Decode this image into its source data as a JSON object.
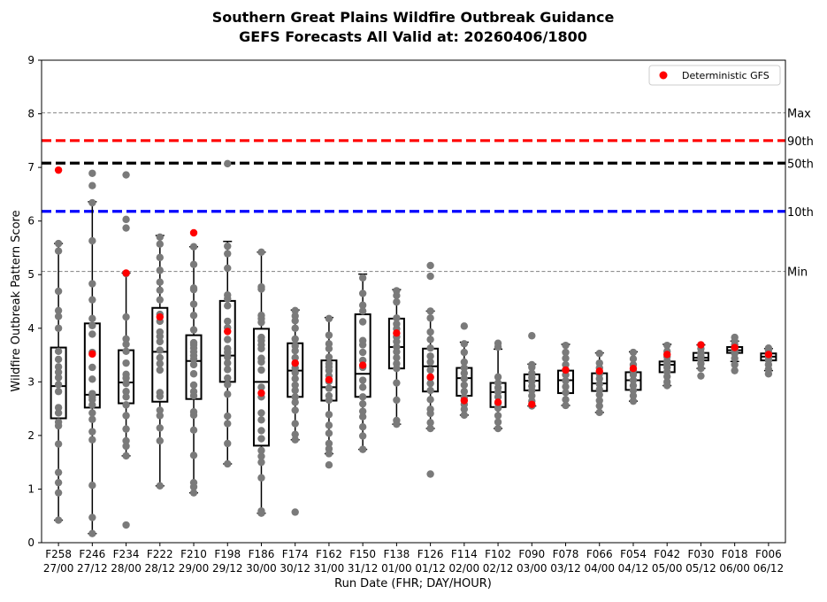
{
  "chart_data": {
    "type": "box",
    "title": "Southern Great Plains Wildfire Outbreak Guidance",
    "subtitle": "GEFS Forecasts All Valid at: 20260406/1800",
    "xlabel": "Run Date (FHR; DAY/HOUR)",
    "ylabel": "Wildfire Outbreak Pattern Score",
    "ylim": [
      0,
      9
    ],
    "yticks": [
      "0",
      "1",
      "2",
      "3",
      "4",
      "5",
      "6",
      "7",
      "8",
      "9"
    ],
    "legend": {
      "label": "Deterministic GFS",
      "position": "top-right",
      "color": "#ff0000"
    },
    "reference_lines": [
      {
        "label": "Max",
        "value": 8.02,
        "color": "#808080",
        "style": "dashed-thin"
      },
      {
        "label": "90th",
        "value": 7.5,
        "color": "#ff0000",
        "style": "dashed-thick"
      },
      {
        "label": "50th",
        "value": 7.08,
        "color": "#000000",
        "style": "dashed-thick"
      },
      {
        "label": "10th",
        "value": 6.18,
        "color": "#0000ff",
        "style": "dashed-thick"
      },
      {
        "label": "Min",
        "value": 5.06,
        "color": "#808080",
        "style": "dashed-thin"
      }
    ],
    "categories": [
      {
        "fhr": "F258",
        "date": "27/00",
        "q1": 2.32,
        "median": 2.92,
        "q3": 3.64,
        "lo": 0.42,
        "hi": 5.58,
        "det": 6.95,
        "members": [
          0.42,
          0.93,
          1.12,
          1.31,
          1.84,
          2.18,
          2.25,
          2.42,
          2.52,
          2.82,
          2.95,
          3.08,
          3.18,
          3.28,
          3.42,
          3.57,
          4.0,
          4.22,
          4.33,
          4.69,
          5.44,
          5.58
        ]
      },
      {
        "fhr": "F246",
        "date": "27/12",
        "q1": 2.52,
        "median": 2.76,
        "q3": 4.09,
        "lo": 0.17,
        "hi": 6.36,
        "det": 3.52,
        "members": [
          0.17,
          0.47,
          1.07,
          1.92,
          2.07,
          2.3,
          2.42,
          2.57,
          2.67,
          2.72,
          2.78,
          3.05,
          3.27,
          3.55,
          3.89,
          4.05,
          4.18,
          4.53,
          4.83,
          5.63,
          6.34,
          6.66,
          6.89
        ]
      },
      {
        "fhr": "F234",
        "date": "28/00",
        "q1": 2.6,
        "median": 2.99,
        "q3": 3.59,
        "lo": 1.62,
        "hi": 5.03,
        "det": 5.03,
        "members": [
          0.33,
          1.62,
          1.8,
          1.9,
          2.12,
          2.37,
          2.57,
          2.72,
          2.82,
          2.97,
          3.07,
          3.14,
          3.35,
          3.57,
          3.7,
          3.8,
          4.21,
          5.02,
          5.87,
          6.03,
          6.86
        ]
      },
      {
        "fhr": "F222",
        "date": "28/12",
        "q1": 2.63,
        "median": 3.56,
        "q3": 4.38,
        "lo": 1.06,
        "hi": 5.73,
        "det": 4.21,
        "members": [
          1.06,
          1.9,
          2.14,
          2.37,
          2.47,
          2.73,
          2.8,
          3.22,
          3.34,
          3.45,
          3.59,
          3.75,
          3.85,
          3.93,
          4.13,
          4.26,
          4.53,
          4.71,
          4.86,
          5.08,
          5.32,
          5.57,
          5.7
        ]
      },
      {
        "fhr": "F210",
        "date": "29/00",
        "q1": 2.68,
        "median": 3.39,
        "q3": 3.87,
        "lo": 0.93,
        "hi": 5.52,
        "det": 5.78,
        "members": [
          0.93,
          1.04,
          1.12,
          1.63,
          2.1,
          2.38,
          2.44,
          2.74,
          2.82,
          2.94,
          3.15,
          3.32,
          3.43,
          3.49,
          3.56,
          3.63,
          3.69,
          3.73,
          3.97,
          4.24,
          4.45,
          4.72,
          4.75,
          5.19,
          5.52
        ]
      },
      {
        "fhr": "F198",
        "date": "29/12",
        "q1": 3.0,
        "median": 3.49,
        "q3": 4.51,
        "lo": 1.47,
        "hi": 5.62,
        "det": 3.94,
        "members": [
          1.47,
          1.85,
          2.22,
          2.36,
          2.77,
          2.95,
          3.07,
          3.23,
          3.35,
          3.46,
          3.55,
          3.62,
          3.79,
          4.01,
          4.13,
          4.42,
          4.55,
          4.62,
          5.12,
          5.39,
          5.53,
          7.07
        ]
      },
      {
        "fhr": "F186",
        "date": "30/00",
        "q1": 1.81,
        "median": 3.0,
        "q3": 3.99,
        "lo": 0.55,
        "hi": 5.42,
        "det": 2.79,
        "members": [
          0.55,
          0.59,
          1.21,
          1.5,
          1.61,
          1.72,
          1.94,
          2.09,
          2.29,
          2.42,
          2.72,
          2.9,
          3.22,
          3.37,
          3.44,
          3.62,
          3.69,
          3.77,
          3.83,
          4.11,
          4.18,
          4.24,
          4.73,
          4.77,
          5.42
        ]
      },
      {
        "fhr": "F174",
        "date": "30/12",
        "q1": 2.72,
        "median": 3.21,
        "q3": 3.72,
        "lo": 1.92,
        "hi": 4.34,
        "det": 3.35,
        "members": [
          0.57,
          1.92,
          2.02,
          2.22,
          2.47,
          2.62,
          2.72,
          2.84,
          2.94,
          3.06,
          3.17,
          3.26,
          3.34,
          3.45,
          3.58,
          3.67,
          3.8,
          4.0,
          4.14,
          4.23,
          4.33
        ]
      },
      {
        "fhr": "F162",
        "date": "31/00",
        "q1": 2.65,
        "median": 2.9,
        "q3": 3.4,
        "lo": 1.66,
        "hi": 4.2,
        "det": 3.04,
        "members": [
          1.45,
          1.66,
          1.75,
          1.85,
          2.04,
          2.19,
          2.39,
          2.66,
          2.74,
          2.88,
          3.01,
          3.11,
          3.21,
          3.28,
          3.34,
          3.46,
          3.62,
          3.71,
          3.87,
          4.18
        ]
      },
      {
        "fhr": "F150",
        "date": "31/12",
        "q1": 2.72,
        "median": 3.15,
        "q3": 4.26,
        "lo": 1.74,
        "hi": 5.01,
        "det": 3.31,
        "members": [
          1.74,
          1.99,
          2.16,
          2.35,
          2.45,
          2.59,
          2.72,
          2.9,
          3.03,
          3.27,
          3.4,
          3.55,
          3.69,
          3.77,
          4.12,
          4.32,
          4.43,
          4.65,
          4.94
        ]
      },
      {
        "fhr": "F138",
        "date": "01/00",
        "q1": 3.25,
        "median": 3.65,
        "q3": 4.18,
        "lo": 2.21,
        "hi": 4.72,
        "det": 3.91,
        "members": [
          2.21,
          2.28,
          2.66,
          2.98,
          3.25,
          3.34,
          3.45,
          3.56,
          3.65,
          3.75,
          3.84,
          3.99,
          4.08,
          4.19,
          4.49,
          4.61,
          4.7
        ]
      },
      {
        "fhr": "F126",
        "date": "01/12",
        "q1": 2.82,
        "median": 3.29,
        "q3": 3.62,
        "lo": 2.13,
        "hi": 4.32,
        "det": 3.09,
        "members": [
          1.28,
          2.13,
          2.24,
          2.41,
          2.49,
          2.67,
          2.84,
          2.97,
          3.08,
          3.22,
          3.37,
          3.48,
          3.63,
          3.79,
          3.93,
          4.19,
          4.32,
          4.97,
          5.17
        ]
      },
      {
        "fhr": "F114",
        "date": "02/00",
        "q1": 2.74,
        "median": 3.07,
        "q3": 3.26,
        "lo": 2.38,
        "hi": 3.74,
        "det": 2.65,
        "members": [
          2.38,
          2.49,
          2.58,
          2.71,
          2.82,
          2.94,
          3.06,
          3.16,
          3.26,
          3.37,
          3.55,
          3.71,
          4.04
        ]
      },
      {
        "fhr": "F102",
        "date": "02/12",
        "q1": 2.53,
        "median": 2.81,
        "q3": 2.98,
        "lo": 2.13,
        "hi": 3.61,
        "det": 2.62,
        "members": [
          2.13,
          2.25,
          2.37,
          2.51,
          2.6,
          2.72,
          2.81,
          2.89,
          2.98,
          3.09,
          3.65,
          3.72
        ]
      },
      {
        "fhr": "F090",
        "date": "03/00",
        "q1": 2.84,
        "median": 3.02,
        "q3": 3.14,
        "lo": 2.55,
        "hi": 3.33,
        "det": 2.58,
        "members": [
          2.55,
          2.64,
          2.74,
          2.84,
          2.92,
          3.01,
          3.08,
          3.16,
          3.27,
          3.32,
          3.86
        ]
      },
      {
        "fhr": "F078",
        "date": "03/12",
        "q1": 2.79,
        "median": 3.03,
        "q3": 3.21,
        "lo": 2.56,
        "hi": 3.7,
        "det": 3.22,
        "members": [
          2.56,
          2.67,
          2.8,
          2.91,
          3.02,
          3.13,
          3.22,
          3.32,
          3.44,
          3.55,
          3.68
        ]
      },
      {
        "fhr": "F066",
        "date": "04/00",
        "q1": 2.83,
        "median": 2.97,
        "q3": 3.16,
        "lo": 2.43,
        "hi": 3.54,
        "det": 3.2,
        "members": [
          2.43,
          2.55,
          2.65,
          2.76,
          2.86,
          2.96,
          3.06,
          3.15,
          3.26,
          3.35,
          3.53
        ]
      },
      {
        "fhr": "F054",
        "date": "04/12",
        "q1": 2.85,
        "median": 3.03,
        "q3": 3.18,
        "lo": 2.64,
        "hi": 3.56,
        "det": 3.25,
        "members": [
          2.64,
          2.74,
          2.84,
          2.93,
          3.03,
          3.13,
          3.21,
          3.32,
          3.43,
          3.55
        ]
      },
      {
        "fhr": "F042",
        "date": "05/00",
        "q1": 3.18,
        "median": 3.32,
        "q3": 3.38,
        "lo": 2.93,
        "hi": 3.7,
        "det": 3.51,
        "members": [
          2.93,
          3.0,
          3.1,
          3.19,
          3.27,
          3.33,
          3.39,
          3.47,
          3.57,
          3.68
        ]
      },
      {
        "fhr": "F030",
        "date": "05/12",
        "q1": 3.4,
        "median": 3.45,
        "q3": 3.54,
        "lo": 3.25,
        "hi": 3.69,
        "det": 3.69,
        "members": [
          3.11,
          3.25,
          3.34,
          3.42,
          3.48,
          3.54,
          3.62,
          3.69
        ]
      },
      {
        "fhr": "F018",
        "date": "06/00",
        "q1": 3.54,
        "median": 3.59,
        "q3": 3.65,
        "lo": 3.38,
        "hi": 3.76,
        "det": 3.64,
        "members": [
          3.21,
          3.32,
          3.44,
          3.53,
          3.58,
          3.63,
          3.69,
          3.76,
          3.83
        ]
      },
      {
        "fhr": "F006",
        "date": "06/12",
        "q1": 3.4,
        "median": 3.47,
        "q3": 3.53,
        "lo": 3.21,
        "hi": 3.62,
        "det": 3.51,
        "members": [
          3.15,
          3.24,
          3.32,
          3.4,
          3.46,
          3.52,
          3.58,
          3.63
        ]
      }
    ]
  }
}
